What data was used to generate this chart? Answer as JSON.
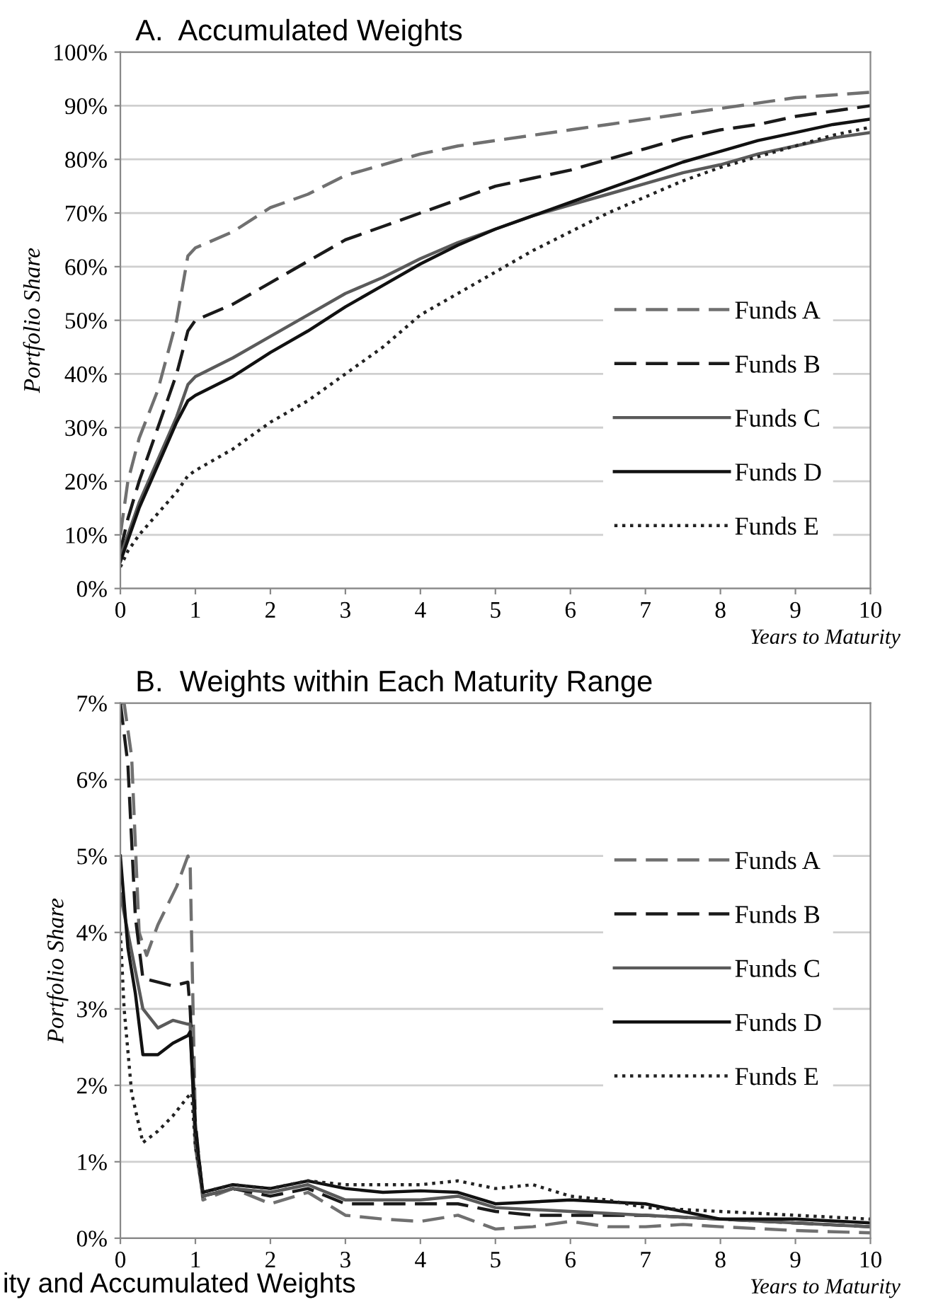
{
  "chart_data": [
    {
      "type": "line",
      "title": "A.  Accumulated Weights",
      "xlabel": "Years to Maturity",
      "ylabel": "Portfolio Share",
      "xlim": [
        0,
        10
      ],
      "xticks": [
        0,
        1,
        2,
        3,
        4,
        5,
        6,
        7,
        8,
        9,
        10
      ],
      "ylim": [
        0,
        100
      ],
      "yticks": [
        {
          "value": 0,
          "label": "0%"
        },
        {
          "value": 10,
          "label": "10%"
        },
        {
          "value": 20,
          "label": "20%"
        },
        {
          "value": 30,
          "label": "30%"
        },
        {
          "value": 40,
          "label": "40%"
        },
        {
          "value": 50,
          "label": "50%"
        },
        {
          "value": 60,
          "label": "60%"
        },
        {
          "value": 70,
          "label": "70%"
        },
        {
          "value": 80,
          "label": "80%"
        },
        {
          "value": 90,
          "label": "90%"
        },
        {
          "value": 100,
          "label": "100%"
        }
      ],
      "grid": "y",
      "legend": "bottom right",
      "marker": "none",
      "series": [
        {
          "name": "Funds A",
          "color": "#707070",
          "line_style": "dashed",
          "x": [
            0,
            0.1,
            0.25,
            0.5,
            0.75,
            0.9,
            1,
            1.5,
            2,
            2.5,
            3,
            3.5,
            4,
            4.5,
            5,
            5.5,
            6,
            6.5,
            7,
            7.5,
            8,
            8.5,
            9,
            9.5,
            10
          ],
          "values": [
            10,
            20,
            28,
            37,
            50,
            62,
            63.5,
            66.5,
            71,
            73.5,
            77,
            79,
            81,
            82.5,
            83.5,
            84.5,
            85.5,
            86.5,
            87.5,
            88.5,
            89.5,
            90.5,
            91.5,
            92,
            92.5
          ]
        },
        {
          "name": "Funds B",
          "color": "#1a1a1a",
          "line_style": "dashed",
          "x": [
            0,
            0.1,
            0.25,
            0.5,
            0.75,
            0.9,
            1,
            1.5,
            2,
            2.5,
            3,
            3.5,
            4,
            4.5,
            5,
            5.5,
            6,
            6.5,
            7,
            7.5,
            8,
            8.5,
            9,
            9.5,
            10
          ],
          "values": [
            7,
            13,
            20,
            30,
            40,
            48,
            50,
            53,
            57,
            61,
            65,
            67.5,
            70,
            72.5,
            75,
            76.5,
            78,
            80,
            82,
            84,
            85.5,
            86.5,
            88,
            89,
            90
          ]
        },
        {
          "name": "Funds C",
          "color": "#5a5a5a",
          "line_style": "solid",
          "x": [
            0,
            0.1,
            0.25,
            0.5,
            0.75,
            0.9,
            1,
            1.5,
            2,
            2.5,
            3,
            3.5,
            4,
            4.5,
            5,
            5.5,
            6,
            6.5,
            7,
            7.5,
            8,
            8.5,
            9,
            9.5,
            10
          ],
          "values": [
            6,
            10,
            16,
            24,
            32,
            38,
            39.5,
            43,
            47,
            51,
            55,
            58,
            61.5,
            64.5,
            67,
            69.5,
            71.5,
            73.5,
            75.5,
            77.5,
            79,
            81,
            82.5,
            84,
            85
          ]
        },
        {
          "name": "Funds D",
          "color": "#111111",
          "line_style": "solid",
          "x": [
            0,
            0.1,
            0.25,
            0.5,
            0.75,
            0.9,
            1,
            1.5,
            2,
            2.5,
            3,
            3.5,
            4,
            4.5,
            5,
            5.5,
            6,
            6.5,
            7,
            7.5,
            8,
            8.5,
            9,
            9.5,
            10
          ],
          "values": [
            5,
            9,
            15,
            23,
            31,
            35,
            36,
            39.5,
            44,
            48,
            52.5,
            56.5,
            60.5,
            64,
            67,
            69.5,
            72,
            74.5,
            77,
            79.5,
            81.5,
            83.5,
            85,
            86.5,
            87.5
          ]
        },
        {
          "name": "Funds E",
          "color": "#222222",
          "line_style": "dotted",
          "x": [
            0,
            0.1,
            0.25,
            0.5,
            0.75,
            0.9,
            1,
            1.5,
            2,
            2.5,
            3,
            3.5,
            4,
            4.5,
            5,
            5.5,
            6,
            6.5,
            7,
            7.5,
            8,
            8.5,
            9,
            9.5,
            10
          ],
          "values": [
            4,
            7,
            10,
            14,
            18,
            21,
            22,
            26,
            31,
            35,
            40,
            45,
            51,
            55,
            59,
            63,
            66.5,
            70,
            73,
            76,
            78.5,
            80.5,
            82.5,
            84.5,
            86
          ]
        }
      ]
    },
    {
      "type": "line",
      "title": "B.  Weights within Each Maturity Range",
      "xlabel": "Years to Maturity",
      "ylabel": "Portfolio Share",
      "xlim": [
        0,
        10
      ],
      "xticks": [
        0,
        1,
        2,
        3,
        4,
        5,
        6,
        7,
        8,
        9,
        10
      ],
      "ylim": [
        0,
        7
      ],
      "yticks": [
        {
          "value": 0,
          "label": "0%"
        },
        {
          "value": 1,
          "label": "1%"
        },
        {
          "value": 2,
          "label": "2%"
        },
        {
          "value": 3,
          "label": "3%"
        },
        {
          "value": 4,
          "label": "4%"
        },
        {
          "value": 5,
          "label": "5%"
        },
        {
          "value": 6,
          "label": "6%"
        },
        {
          "value": 7,
          "label": "7%"
        }
      ],
      "grid": "y",
      "legend": "right",
      "marker": "none",
      "annotations": [
        "ity and Accumulated Weights"
      ],
      "series": [
        {
          "name": "Funds A",
          "color": "#707070",
          "line_style": "dashed",
          "x": [
            0,
            0.05,
            0.15,
            0.25,
            0.35,
            0.5,
            0.75,
            0.9,
            0.93,
            1,
            1.1,
            1.5,
            2,
            2.5,
            3,
            3.5,
            4,
            4.5,
            5,
            5.5,
            6,
            6.5,
            7,
            7.5,
            8,
            9,
            10
          ],
          "values": [
            7,
            7,
            6.3,
            4,
            3.7,
            4.1,
            4.6,
            5,
            4.9,
            1.5,
            0.5,
            0.65,
            0.45,
            0.6,
            0.3,
            0.25,
            0.22,
            0.3,
            0.12,
            0.15,
            0.22,
            0.15,
            0.15,
            0.18,
            0.15,
            0.1,
            0.07
          ]
        },
        {
          "name": "Funds B",
          "color": "#1a1a1a",
          "line_style": "dashed",
          "x": [
            0,
            0.1,
            0.2,
            0.3,
            0.5,
            0.7,
            0.9,
            0.93,
            1,
            1.1,
            1.5,
            2,
            2.5,
            3,
            3.5,
            4,
            4.5,
            5,
            5.5,
            6,
            7,
            8,
            9,
            10
          ],
          "values": [
            7,
            6.2,
            4.2,
            3.4,
            3.35,
            3.3,
            3.35,
            3.0,
            1.5,
            0.55,
            0.65,
            0.55,
            0.65,
            0.45,
            0.45,
            0.45,
            0.45,
            0.35,
            0.3,
            0.3,
            0.3,
            0.25,
            0.2,
            0.15
          ]
        },
        {
          "name": "Funds C",
          "color": "#5a5a5a",
          "line_style": "solid",
          "x": [
            0,
            0.1,
            0.2,
            0.3,
            0.5,
            0.7,
            0.9,
            0.93,
            1,
            1.1,
            1.5,
            2,
            2.5,
            3,
            3.5,
            4,
            4.5,
            5,
            6,
            7,
            8,
            9,
            10
          ],
          "values": [
            4.5,
            4,
            3.5,
            3.0,
            2.75,
            2.85,
            2.8,
            2.8,
            1.2,
            0.55,
            0.65,
            0.6,
            0.7,
            0.5,
            0.5,
            0.5,
            0.55,
            0.4,
            0.35,
            0.3,
            0.25,
            0.2,
            0.15
          ]
        },
        {
          "name": "Funds D",
          "color": "#111111",
          "line_style": "solid",
          "x": [
            0,
            0.1,
            0.2,
            0.3,
            0.5,
            0.7,
            0.9,
            0.93,
            1,
            1.1,
            1.5,
            2,
            2.5,
            3,
            3.5,
            4,
            4.5,
            5,
            6,
            7,
            8,
            9,
            10
          ],
          "values": [
            5,
            3.8,
            3.2,
            2.4,
            2.4,
            2.55,
            2.65,
            2.7,
            1.4,
            0.6,
            0.7,
            0.65,
            0.75,
            0.65,
            0.6,
            0.62,
            0.6,
            0.45,
            0.5,
            0.45,
            0.25,
            0.25,
            0.2
          ]
        },
        {
          "name": "Funds E",
          "color": "#222222",
          "line_style": "dotted",
          "x": [
            0,
            0.05,
            0.15,
            0.3,
            0.5,
            0.7,
            0.9,
            0.95,
            1,
            1.1,
            1.5,
            2,
            2.5,
            3,
            3.5,
            4,
            4.5,
            5,
            5.5,
            6,
            6.5,
            7,
            8,
            9,
            10
          ],
          "values": [
            4,
            3,
            1.9,
            1.25,
            1.4,
            1.6,
            1.85,
            1.9,
            1.2,
            0.6,
            0.7,
            0.65,
            0.75,
            0.7,
            0.7,
            0.7,
            0.75,
            0.65,
            0.7,
            0.55,
            0.5,
            0.4,
            0.35,
            0.3,
            0.25
          ]
        }
      ]
    }
  ]
}
